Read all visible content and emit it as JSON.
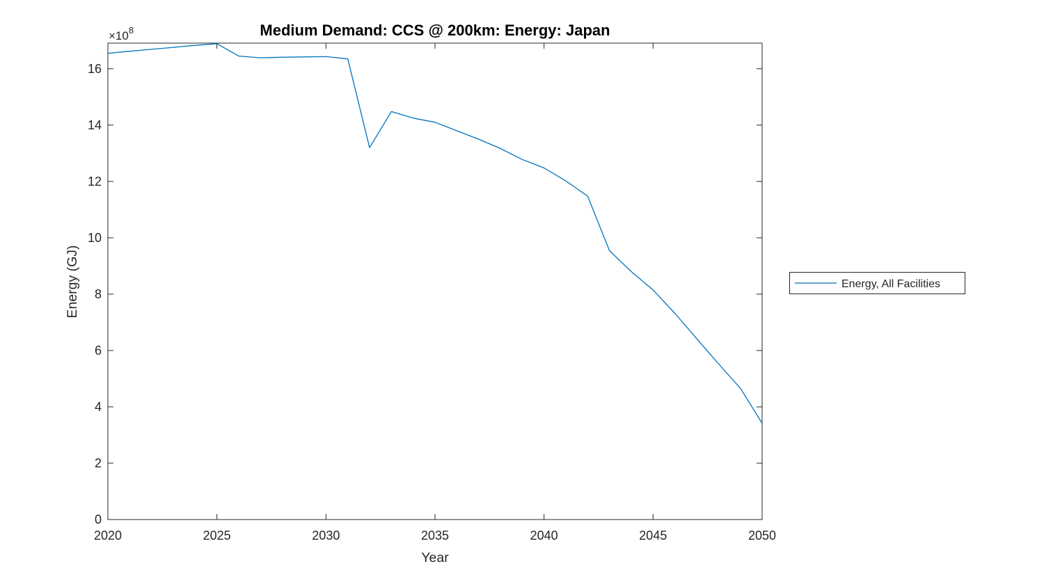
{
  "window": {
    "background_color": "#ffffff"
  },
  "colors": {
    "series_blue": "#0072BD",
    "axis_color": "#262626",
    "title_color": "#000000"
  },
  "chart_data": {
    "type": "line",
    "title": "Medium Demand: CCS @ 200km: Energy: Japan",
    "xlabel": "Year",
    "ylabel": "Energy (GJ)",
    "y_multiplier": {
      "base": "×10",
      "exponent": "8"
    },
    "unit_note": "y values are in units of 10^8 GJ as read from the axis",
    "xlim": [
      2020,
      2050
    ],
    "ylim_e8": [
      0,
      16.91
    ],
    "x_ticks": [
      2020,
      2025,
      2030,
      2035,
      2040,
      2045,
      2050
    ],
    "y_ticks_e8": [
      0,
      2,
      4,
      6,
      8,
      10,
      12,
      14,
      16
    ],
    "grid": false,
    "legend": {
      "position": "right-outside",
      "entries": [
        "Energy, All Facilities"
      ]
    },
    "series": [
      {
        "name": "Energy, All Facilities",
        "color": "#0072BD",
        "x": [
          2020,
          2021,
          2022,
          2023,
          2024,
          2025,
          2026,
          2027,
          2028,
          2029,
          2030,
          2031,
          2032,
          2033,
          2034,
          2035,
          2036,
          2037,
          2038,
          2039,
          2040,
          2041,
          2042,
          2043,
          2044,
          2045,
          2046,
          2047,
          2048,
          2049,
          2050
        ],
        "y_e8": [
          16.55,
          16.62,
          16.69,
          16.76,
          16.83,
          16.89,
          16.45,
          16.39,
          16.41,
          16.42,
          16.43,
          16.35,
          13.2,
          14.48,
          14.25,
          14.1,
          13.8,
          13.5,
          13.17,
          12.78,
          12.48,
          12.02,
          11.48,
          9.54,
          8.8,
          8.15,
          7.32,
          6.42,
          5.53,
          4.66,
          3.42
        ]
      }
    ]
  }
}
